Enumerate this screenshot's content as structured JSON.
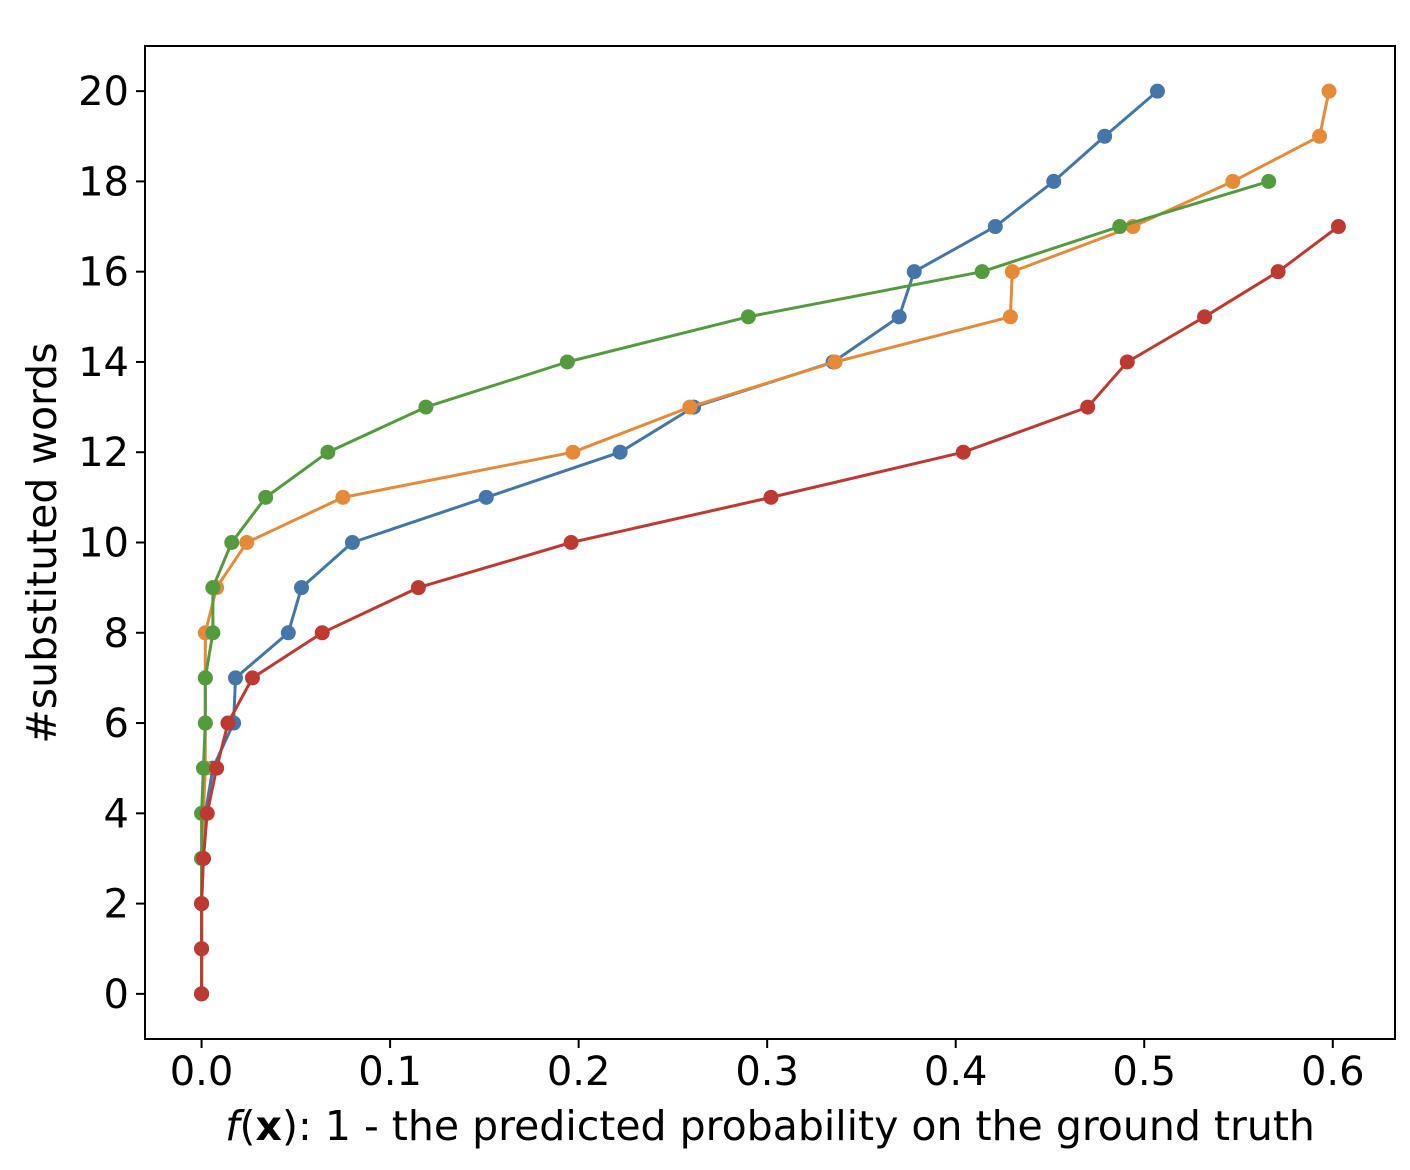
{
  "chart_data": {
    "type": "line",
    "title": "",
    "xlabel_parts": [
      {
        "text": "f",
        "style": "italic"
      },
      {
        "text": "(",
        "style": "normal"
      },
      {
        "text": "x",
        "style": "bold"
      },
      {
        "text": "): 1 - the predicted probability on the ground truth",
        "style": "normal"
      }
    ],
    "ylabel": "#substituted words",
    "xlim": [
      -0.03,
      0.633
    ],
    "ylim": [
      -1,
      21
    ],
    "xticks": [
      0.0,
      0.1,
      0.2,
      0.3,
      0.4,
      0.5,
      0.6
    ],
    "xtick_labels": [
      "0.0",
      "0.1",
      "0.2",
      "0.3",
      "0.4",
      "0.5",
      "0.6"
    ],
    "yticks": [
      0,
      2,
      4,
      6,
      8,
      10,
      12,
      14,
      16,
      18,
      20
    ],
    "ytick_labels": [
      "0",
      "2",
      "4",
      "6",
      "8",
      "10",
      "12",
      "14",
      "16",
      "18",
      "20"
    ],
    "grid": false,
    "legend": "none",
    "series": [
      {
        "color": "#4675a8",
        "points": [
          [
            0.0,
            0
          ],
          [
            0.0,
            1
          ],
          [
            0.0,
            2
          ],
          [
            0.001,
            3
          ],
          [
            0.002,
            4
          ],
          [
            0.006,
            5
          ],
          [
            0.017,
            6
          ],
          [
            0.018,
            7
          ],
          [
            0.046,
            8
          ],
          [
            0.053,
            9
          ],
          [
            0.08,
            10
          ],
          [
            0.151,
            11
          ],
          [
            0.222,
            12
          ],
          [
            0.261,
            13
          ],
          [
            0.335,
            14
          ],
          [
            0.37,
            15
          ],
          [
            0.378,
            16
          ],
          [
            0.421,
            17
          ],
          [
            0.452,
            18
          ],
          [
            0.479,
            19
          ],
          [
            0.507,
            20
          ]
        ]
      },
      {
        "color": "#e58a39",
        "points": [
          [
            0.0,
            0
          ],
          [
            0.0,
            1
          ],
          [
            0.0,
            2
          ],
          [
            0.0,
            3
          ],
          [
            0.001,
            4
          ],
          [
            0.002,
            5
          ],
          [
            0.002,
            6
          ],
          [
            0.002,
            7
          ],
          [
            0.002,
            8
          ],
          [
            0.008,
            9
          ],
          [
            0.024,
            10
          ],
          [
            0.075,
            11
          ],
          [
            0.197,
            12
          ],
          [
            0.259,
            13
          ],
          [
            0.336,
            14
          ],
          [
            0.429,
            15
          ],
          [
            0.43,
            16
          ],
          [
            0.494,
            17
          ],
          [
            0.547,
            18
          ],
          [
            0.593,
            19
          ],
          [
            0.598,
            20
          ]
        ]
      },
      {
        "color": "#549a3f",
        "points": [
          [
            0.0,
            0
          ],
          [
            0.0,
            1
          ],
          [
            0.0,
            2
          ],
          [
            0.0,
            3
          ],
          [
            0.0,
            4
          ],
          [
            0.001,
            5
          ],
          [
            0.002,
            6
          ],
          [
            0.002,
            7
          ],
          [
            0.006,
            8
          ],
          [
            0.006,
            9
          ],
          [
            0.016,
            10
          ],
          [
            0.034,
            11
          ],
          [
            0.067,
            12
          ],
          [
            0.119,
            13
          ],
          [
            0.194,
            14
          ],
          [
            0.29,
            15
          ],
          [
            0.414,
            16
          ],
          [
            0.487,
            17
          ],
          [
            0.566,
            18
          ]
        ]
      },
      {
        "color": "#bd3a33",
        "points": [
          [
            0.0,
            0
          ],
          [
            0.0,
            1
          ],
          [
            0.0,
            2
          ],
          [
            0.001,
            3
          ],
          [
            0.003,
            4
          ],
          [
            0.008,
            5
          ],
          [
            0.014,
            6
          ],
          [
            0.027,
            7
          ],
          [
            0.064,
            8
          ],
          [
            0.115,
            9
          ],
          [
            0.196,
            10
          ],
          [
            0.302,
            11
          ],
          [
            0.404,
            12
          ],
          [
            0.47,
            13
          ],
          [
            0.491,
            14
          ],
          [
            0.532,
            15
          ],
          [
            0.571,
            16
          ],
          [
            0.603,
            17
          ]
        ]
      }
    ]
  }
}
